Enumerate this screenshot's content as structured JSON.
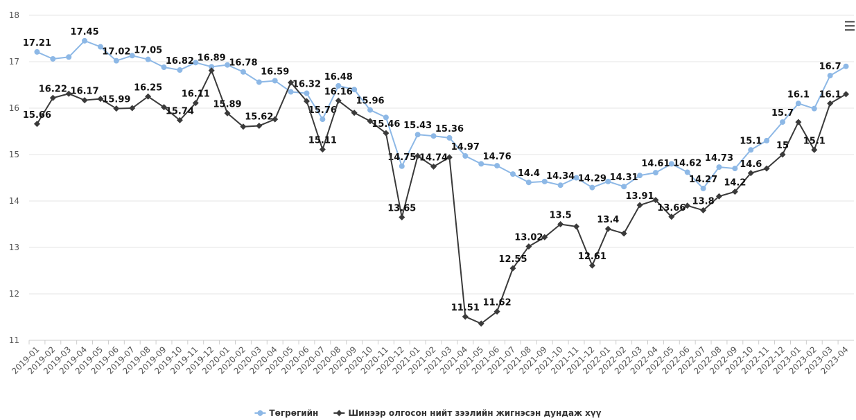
{
  "chart_data": {
    "type": "line",
    "categories": [
      "2019-01",
      "2019-02",
      "2019-03",
      "2019-04",
      "2019-05",
      "2019-06",
      "2019-07",
      "2019-08",
      "2019-09",
      "2019-10",
      "2019-11",
      "2019-12",
      "2020-01",
      "2020-02",
      "2020-03",
      "2020-04",
      "2020-05",
      "2020-06",
      "2020-07",
      "2020-08",
      "2020-09",
      "2020-10",
      "2020-11",
      "2020-12",
      "2021-01",
      "2021-02",
      "2021-03",
      "2021-04",
      "2021-05",
      "2021-06",
      "2021-07",
      "2021-08",
      "2021-09",
      "2021-10",
      "2021-11",
      "2021-12",
      "2022-01",
      "2022-02",
      "2022-03",
      "2022-04",
      "2022-05",
      "2022-06",
      "2022-07",
      "2022-08",
      "2022-09",
      "2022-10",
      "2022-11",
      "2022-12",
      "2023-01",
      "2023-02",
      "2023-03",
      "2023-04"
    ],
    "series": [
      {
        "name": "Төгрөгийн",
        "color": "#8db8e6",
        "marker": "circle",
        "values": [
          17.21,
          17.06,
          17.1,
          17.45,
          17.32,
          17.02,
          17.13,
          17.05,
          16.88,
          16.82,
          16.98,
          16.89,
          16.93,
          16.78,
          16.56,
          16.59,
          16.35,
          16.32,
          15.76,
          16.48,
          16.4,
          15.96,
          15.8,
          14.75,
          15.43,
          15.4,
          15.36,
          14.97,
          14.8,
          14.76,
          14.58,
          14.4,
          14.42,
          14.34,
          14.5,
          14.29,
          14.42,
          14.31,
          14.55,
          14.61,
          14.8,
          14.62,
          14.27,
          14.73,
          14.7,
          15.1,
          15.3,
          15.7,
          16.1,
          15.99,
          16.7,
          16.9
        ],
        "value_labels": [
          "17.21",
          null,
          null,
          "17.45",
          null,
          "17.02",
          null,
          "17.05",
          null,
          "16.82",
          null,
          "16.89",
          null,
          "16.78",
          null,
          "16.59",
          null,
          "16.32",
          "15.76",
          "16.48",
          null,
          "15.96",
          null,
          "14.75",
          "15.43",
          null,
          "15.36",
          "14.97",
          null,
          "14.76",
          null,
          "14.4",
          null,
          "14.34",
          null,
          "14.29",
          null,
          "14.31",
          null,
          "14.61",
          null,
          "14.62",
          "14.27",
          "14.73",
          null,
          "15.1",
          null,
          "15.7",
          "16.1",
          null,
          "16.7",
          null
        ]
      },
      {
        "name": "Шинээр олгосон нийт зээлийн жигнэсэн дундаж хүү",
        "color": "#3a3a3a",
        "marker": "diamond",
        "values": [
          15.66,
          16.22,
          16.31,
          16.17,
          16.2,
          15.99,
          16.0,
          16.25,
          16.02,
          15.74,
          16.11,
          16.81,
          15.89,
          15.6,
          15.62,
          15.76,
          16.55,
          16.15,
          15.11,
          16.16,
          15.9,
          15.72,
          15.46,
          13.65,
          14.97,
          14.74,
          14.94,
          11.51,
          11.36,
          11.62,
          12.55,
          13.02,
          13.22,
          13.5,
          13.45,
          12.61,
          13.4,
          13.3,
          13.91,
          14.02,
          13.66,
          13.9,
          13.8,
          14.1,
          14.2,
          14.6,
          14.7,
          15,
          15.7,
          15.1,
          16.1,
          16.3
        ],
        "value_labels": [
          "15.66",
          "16.22",
          null,
          "16.17",
          null,
          "15.99",
          null,
          "16.25",
          null,
          "15.74",
          "16.11",
          null,
          "15.89",
          null,
          "15.62",
          null,
          null,
          null,
          "15.11",
          "16.16",
          null,
          null,
          "15.46",
          "13.65",
          null,
          "14.74",
          null,
          "11.51",
          null,
          "11.62",
          "12.55",
          "13.02",
          null,
          "13.5",
          null,
          "12.61",
          "13.4",
          null,
          "13.91",
          null,
          "13.66",
          null,
          "13.8",
          null,
          "14.2",
          "14.6",
          null,
          "15",
          null,
          "15.1",
          "16.1",
          null
        ]
      }
    ],
    "ylim": [
      11,
      18
    ],
    "yticks": [
      11,
      12,
      13,
      14,
      15,
      16,
      17,
      18
    ],
    "grid": true,
    "legend": "bottom"
  }
}
